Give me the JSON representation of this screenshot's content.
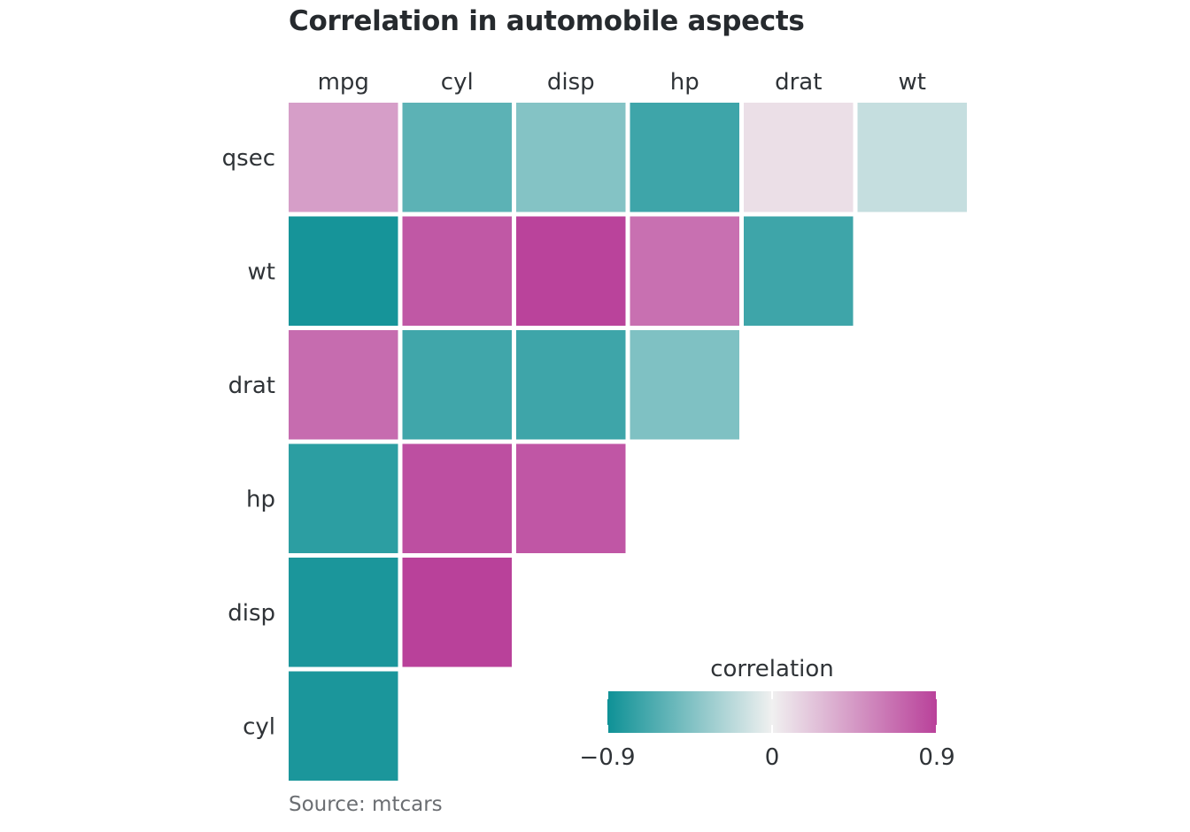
{
  "chart_data": {
    "type": "heatmap",
    "title": "Correlation in automobile aspects",
    "caption": "Source: mtcars",
    "x_categories": [
      "mpg",
      "cyl",
      "disp",
      "hp",
      "drat",
      "wt"
    ],
    "y_categories": [
      "qsec",
      "wt",
      "drat",
      "hp",
      "disp",
      "cyl"
    ],
    "cells": [
      {
        "x": "mpg",
        "y": "qsec",
        "value": 0.42
      },
      {
        "x": "cyl",
        "y": "qsec",
        "value": -0.59
      },
      {
        "x": "disp",
        "y": "qsec",
        "value": -0.43
      },
      {
        "x": "hp",
        "y": "qsec",
        "value": -0.71
      },
      {
        "x": "drat",
        "y": "qsec",
        "value": 0.09
      },
      {
        "x": "wt",
        "y": "qsec",
        "value": -0.17
      },
      {
        "x": "mpg",
        "y": "wt",
        "value": -0.87
      },
      {
        "x": "cyl",
        "y": "wt",
        "value": 0.78
      },
      {
        "x": "disp",
        "y": "wt",
        "value": 0.89
      },
      {
        "x": "hp",
        "y": "wt",
        "value": 0.66
      },
      {
        "x": "drat",
        "y": "wt",
        "value": -0.71
      },
      {
        "x": "mpg",
        "y": "drat",
        "value": 0.68
      },
      {
        "x": "cyl",
        "y": "drat",
        "value": -0.7
      },
      {
        "x": "disp",
        "y": "drat",
        "value": -0.71
      },
      {
        "x": "hp",
        "y": "drat",
        "value": -0.45
      },
      {
        "x": "mpg",
        "y": "hp",
        "value": -0.78
      },
      {
        "x": "cyl",
        "y": "hp",
        "value": 0.83
      },
      {
        "x": "disp",
        "y": "hp",
        "value": 0.79
      },
      {
        "x": "mpg",
        "y": "disp",
        "value": -0.85
      },
      {
        "x": "cyl",
        "y": "disp",
        "value": 0.9
      },
      {
        "x": "mpg",
        "y": "cyl",
        "value": -0.85
      }
    ],
    "legend": {
      "title": "correlation",
      "placement": "bottom-right",
      "range": [
        -0.9,
        0.9
      ],
      "ticks": [
        -0.9,
        0,
        0.9
      ],
      "tick_labels": [
        "−0.9",
        "0",
        "0.9"
      ]
    },
    "colors": {
      "low": "#0e9196",
      "mid": "#f0f0f0",
      "high": "#b9419a"
    },
    "grid": false
  }
}
